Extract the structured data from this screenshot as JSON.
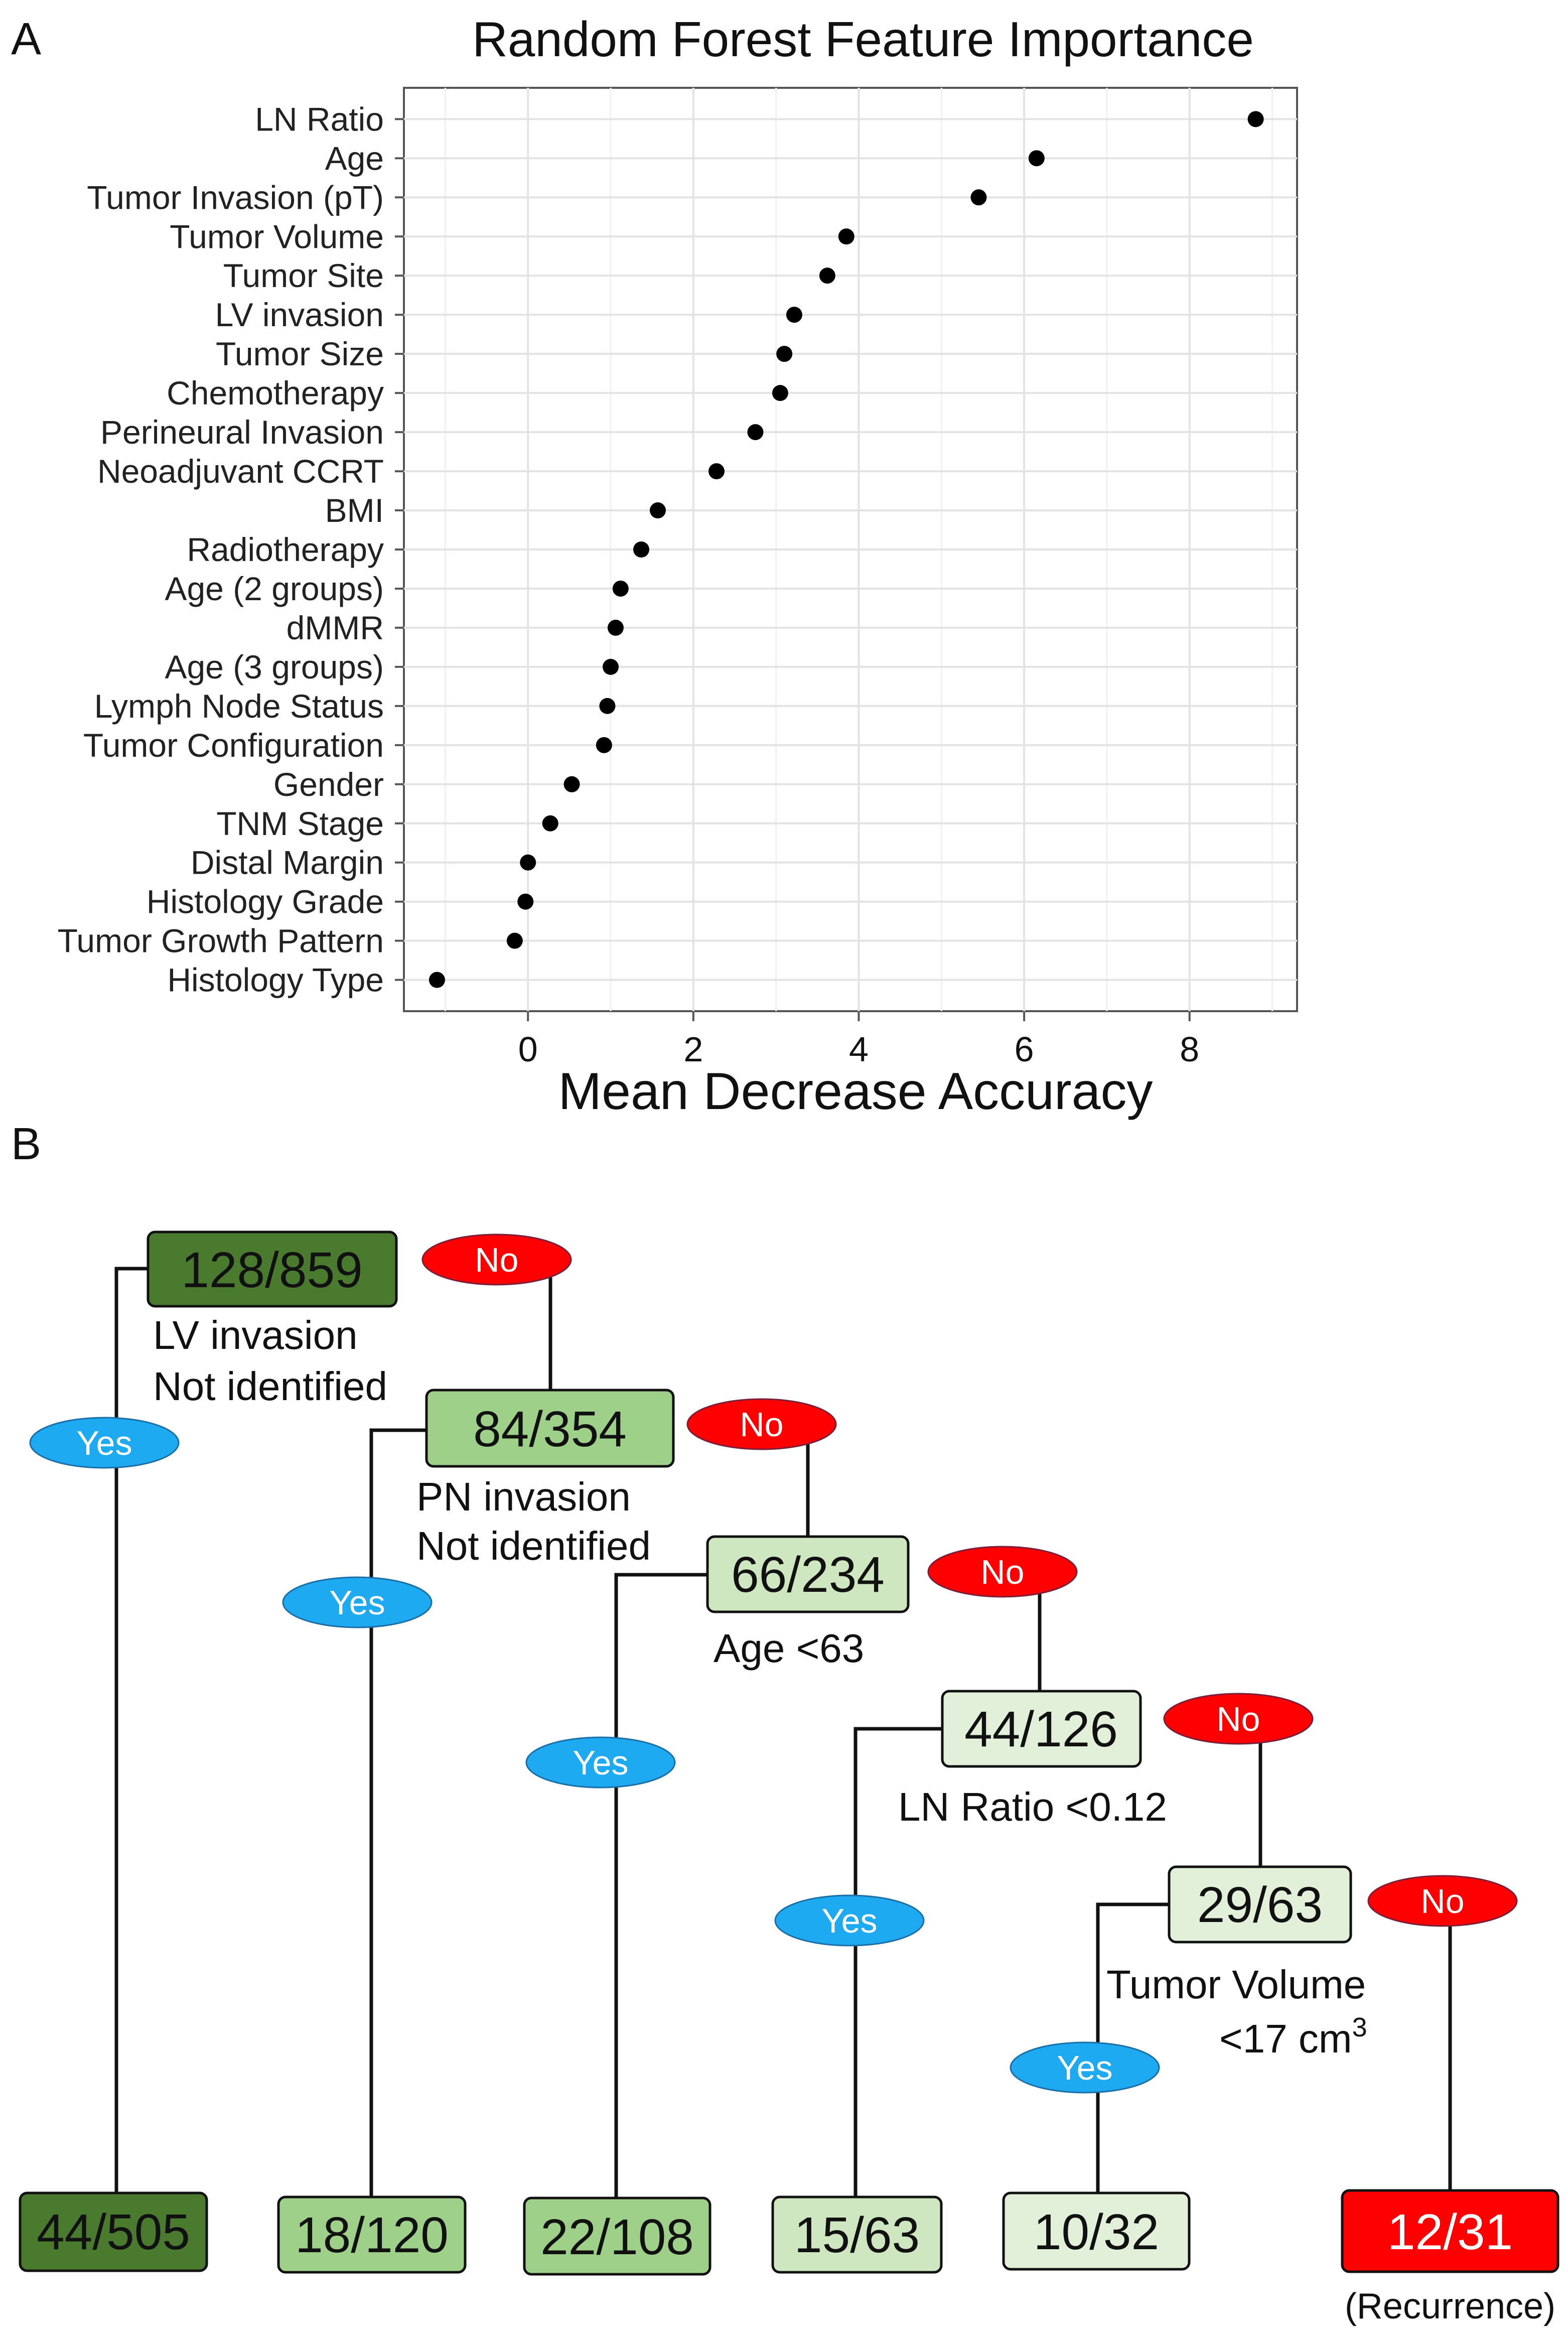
{
  "panel_a": {
    "letter": "A",
    "chart_data": {
      "type": "scatter",
      "title": "Random Forest Feature Importance",
      "xlabel": "Mean Decrease Accuracy",
      "ylabel": "",
      "xlim": [
        -1.5,
        9.3
      ],
      "xticks": [
        0,
        2,
        4,
        6,
        8
      ],
      "xtick_labels": [
        "0",
        "2",
        "4",
        "6",
        "8"
      ],
      "grid": true,
      "categories": [
        "LN Ratio",
        "Age",
        "Tumor Invasion (pT)",
        "Tumor Volume",
        "Tumor Site",
        "LV invasion",
        "Tumor Size",
        "Chemotherapy",
        "Perineural Invasion",
        "Neoadjuvant CCRT",
        "BMI",
        "Radiotherapy",
        "Age (2 groups)",
        "dMMR",
        "Age (3 groups)",
        "Lymph Node Status",
        "Tumor Configuration",
        "Gender",
        "TNM Stage",
        "Distal Margin",
        "Histology Grade",
        "Tumor Growth Pattern",
        "Histology Type"
      ],
      "values": [
        8.8,
        6.15,
        5.45,
        3.85,
        3.62,
        3.22,
        3.1,
        3.05,
        2.75,
        2.28,
        1.57,
        1.37,
        1.12,
        1.06,
        1.0,
        0.96,
        0.92,
        0.53,
        0.27,
        0.0,
        -0.03,
        -0.16,
        -1.1
      ]
    }
  },
  "panel_b": {
    "letter": "B",
    "nodes": [
      {
        "label": "128/859",
        "fill": "#4a7a2e"
      },
      {
        "label": "84/354",
        "fill": "#9fd08a"
      },
      {
        "label": "66/234",
        "fill": "#cfe7c0"
      },
      {
        "label": "44/126",
        "fill": "#e2f0d9"
      },
      {
        "label": "29/63",
        "fill": "#e2f0d9"
      }
    ],
    "conditions": {
      "lv1": "LV invasion",
      "lv2": "Not identified",
      "pn1": "PN invasion",
      "pn2": "Not identified",
      "age": "Age  <63",
      "lnr": "LN Ratio <0.12",
      "tv1": "Tumor  Volume",
      "tv2": "<17 cm",
      "tv2_sup": "3"
    },
    "yes_label": "Yes",
    "no_label": "No",
    "leaves": [
      {
        "label": "44/505",
        "fill": "#4a7a2e"
      },
      {
        "label": "18/120",
        "fill": "#9fd08a"
      },
      {
        "label": "22/108",
        "fill": "#9fd08a"
      },
      {
        "label": "15/63",
        "fill": "#cfe7c0"
      },
      {
        "label": "10/32",
        "fill": "#e2f0d9"
      },
      {
        "label": "12/31",
        "fill": "#ff0000"
      }
    ],
    "recurrence_note": "(Recurrence)",
    "colors": {
      "yes_oval": "#1eaaf1",
      "no_oval": "#ff0000"
    }
  }
}
